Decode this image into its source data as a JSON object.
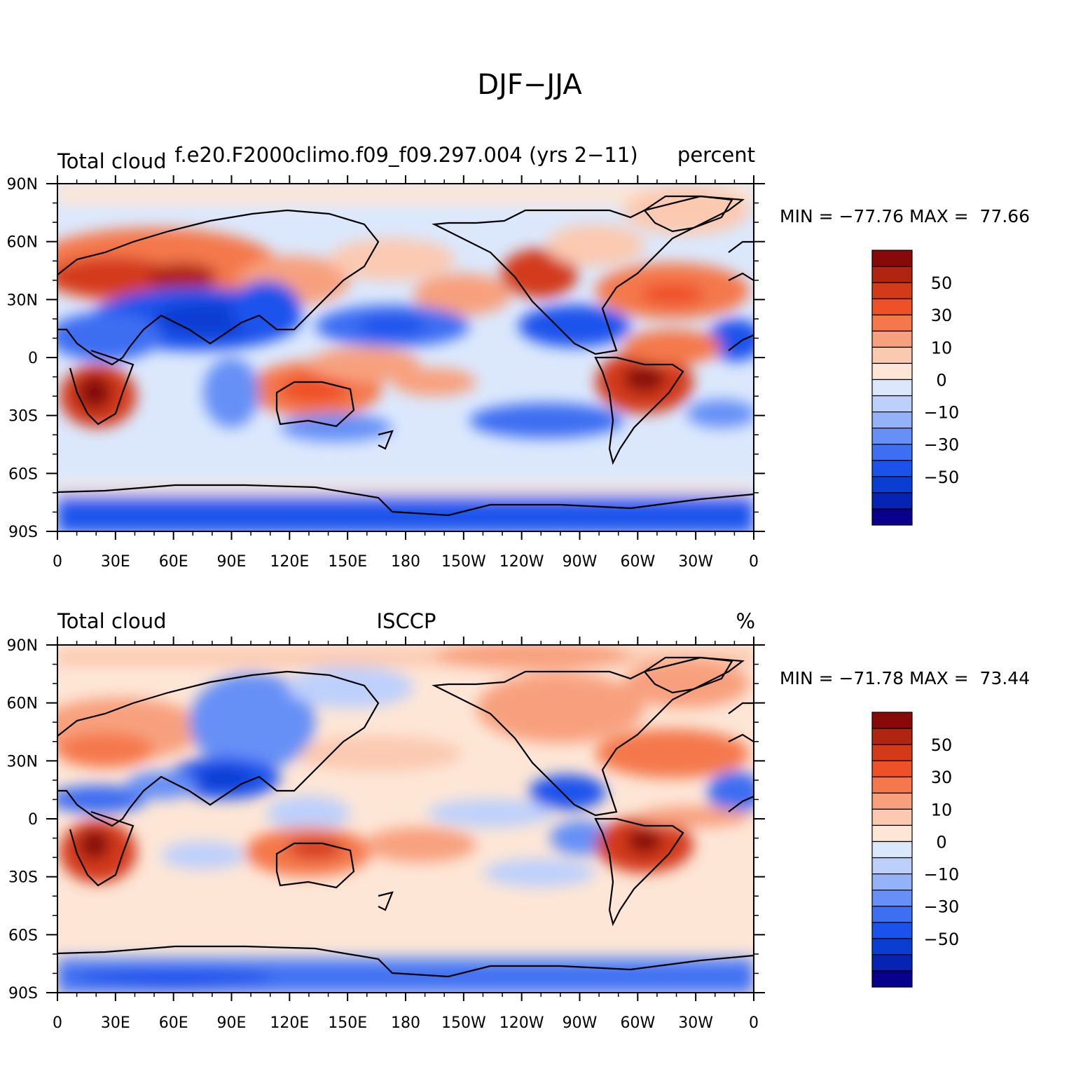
{
  "figure": {
    "title": "DJF−JJA"
  },
  "x_tick_labels": [
    "0",
    "30E",
    "60E",
    "90E",
    "120E",
    "150E",
    "180",
    "150W",
    "120W",
    "90W",
    "60W",
    "30W",
    "0"
  ],
  "y_tick_labels": [
    "90N",
    "60N",
    "30N",
    "0",
    "30S",
    "60S",
    "90S"
  ],
  "colorbar": {
    "colors": [
      "#08008c",
      "#0624b4",
      "#0a3ed2",
      "#1c52ec",
      "#3e6ef2",
      "#6690f6",
      "#93b2f8",
      "#bdd0fb",
      "#dbe8fc",
      "#fde6d6",
      "#fbc9b0",
      "#f8a07e",
      "#f4784c",
      "#ee5028",
      "#d33a1a",
      "#b02412",
      "#870a08"
    ],
    "tick_labels": [
      "50",
      "30",
      "10",
      "0",
      "−10",
      "−30",
      "−50"
    ]
  },
  "panels": [
    {
      "left_title": "Total cloud",
      "center_title": "f.e20.F2000climo.f09_f09.297.004 (yrs 2−11)",
      "right_title": "percent",
      "min_max": "MIN = −77.76 MAX =  77.66"
    },
    {
      "left_title": "Total cloud",
      "center_title": "ISCCP",
      "right_title": "%",
      "min_max": "MIN = −71.78 MAX =  73.44"
    }
  ]
}
